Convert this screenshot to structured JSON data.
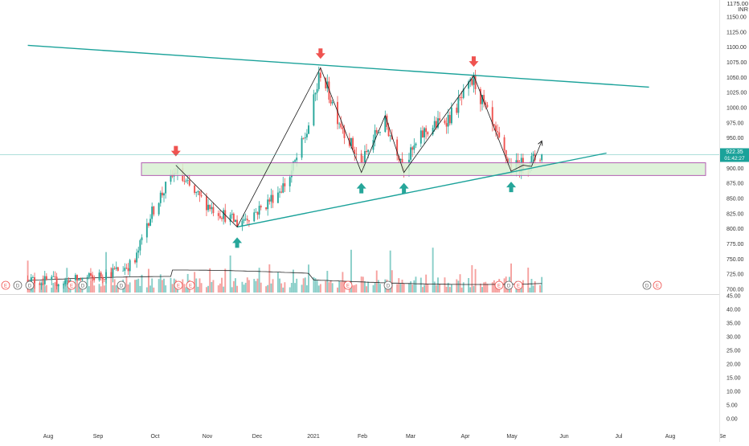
{
  "chart_data": {
    "type": "candlestick",
    "currency": "INR",
    "currency_top_label": "1175.00",
    "price_axis": {
      "range": [
        700,
        1175
      ],
      "ticks": [
        700,
        725,
        750,
        775,
        800,
        825,
        850,
        875,
        900,
        925,
        950,
        975,
        1000,
        1025,
        1050,
        1075,
        1100,
        1125,
        1150
      ]
    },
    "current_price": {
      "value": 922.35,
      "label": "922.35",
      "countdown": "01:42:27"
    },
    "indicator_axis": {
      "range": [
        0,
        45
      ],
      "ticks": [
        "0.00",
        "5.00",
        "10.00",
        "15.00",
        "20.00",
        "25.00",
        "30.00",
        "35.00",
        "40.00",
        "45.00"
      ]
    },
    "time_axis": {
      "labels": [
        "Aug",
        "Sep",
        "Oct",
        "Nov",
        "Dec",
        "2021",
        "Feb",
        "Mar",
        "Apr",
        "May",
        "Jun",
        "Jul",
        "Aug",
        "Se"
      ]
    },
    "events": [
      "E",
      "D",
      "D",
      "E",
      "D",
      "D",
      "E",
      "E",
      "E",
      "D",
      "E",
      "D",
      "E",
      "D",
      "E"
    ],
    "support_zone": {
      "low": 888,
      "high": 909
    },
    "upper_trendline": [
      {
        "date": "2020-07-20",
        "price": 1103
      },
      {
        "date": "2021-07-20",
        "price": 1034
      }
    ],
    "lower_trendline": [
      {
        "date": "2020-11-20",
        "price": 803
      },
      {
        "date": "2021-06-25",
        "price": 925
      }
    ],
    "zigzag": [
      {
        "date": "2020-10-15",
        "price": 905
      },
      {
        "date": "2020-11-20",
        "price": 803
      },
      {
        "date": "2021-01-08",
        "price": 1066
      },
      {
        "date": "2021-02-01",
        "price": 893
      },
      {
        "date": "2021-02-15",
        "price": 987
      },
      {
        "date": "2021-02-26",
        "price": 893
      },
      {
        "date": "2021-04-08",
        "price": 1053
      },
      {
        "date": "2021-04-30",
        "price": 895
      },
      {
        "date": "2021-05-07",
        "price": 905
      },
      {
        "date": "2021-05-12",
        "price": 903
      },
      {
        "date": "2021-05-18",
        "price": 945
      }
    ],
    "down_arrows": [
      {
        "date": "2020-10-15",
        "price": 905
      },
      {
        "date": "2021-01-08",
        "price": 1066
      },
      {
        "date": "2021-04-08",
        "price": 1053
      }
    ],
    "up_arrows": [
      {
        "date": "2020-11-20",
        "price": 803
      },
      {
        "date": "2021-02-01",
        "price": 893
      },
      {
        "date": "2021-02-26",
        "price": 893
      },
      {
        "date": "2021-04-30",
        "price": 895
      }
    ],
    "price_path": [
      {
        "date": "2020-07-20",
        "price": 715
      },
      {
        "date": "2020-08-10",
        "price": 712
      },
      {
        "date": "2020-08-31",
        "price": 722
      },
      {
        "date": "2020-09-14",
        "price": 735
      },
      {
        "date": "2020-09-21",
        "price": 745
      },
      {
        "date": "2020-09-28",
        "price": 810
      },
      {
        "date": "2020-10-05",
        "price": 850
      },
      {
        "date": "2020-10-15",
        "price": 895
      },
      {
        "date": "2020-10-25",
        "price": 860
      },
      {
        "date": "2020-11-05",
        "price": 835
      },
      {
        "date": "2020-11-20",
        "price": 810
      },
      {
        "date": "2020-12-05",
        "price": 835
      },
      {
        "date": "2020-12-20",
        "price": 880
      },
      {
        "date": "2020-12-31",
        "price": 960
      },
      {
        "date": "2021-01-08",
        "price": 1060
      },
      {
        "date": "2021-01-18",
        "price": 985
      },
      {
        "date": "2021-02-01",
        "price": 905
      },
      {
        "date": "2021-02-10",
        "price": 960
      },
      {
        "date": "2021-02-15",
        "price": 975
      },
      {
        "date": "2021-02-26",
        "price": 905
      },
      {
        "date": "2021-03-10",
        "price": 960
      },
      {
        "date": "2021-03-25",
        "price": 985
      },
      {
        "date": "2021-04-08",
        "price": 1045
      },
      {
        "date": "2021-04-20",
        "price": 960
      },
      {
        "date": "2021-04-30",
        "price": 900
      },
      {
        "date": "2021-05-10",
        "price": 910
      },
      {
        "date": "2021-05-18",
        "price": 922
      }
    ],
    "grid": false
  },
  "colors": {
    "up": "#26a69a",
    "down": "#ef5350",
    "trendline": "#1ba29a",
    "zone_fill": "#d8f0d2",
    "zone_stroke": "#b35fb3",
    "zigzag": "#1a1a1a",
    "volume_ma": "#222222",
    "axis_text": "#333333",
    "price_badge": "#1ba29a"
  }
}
